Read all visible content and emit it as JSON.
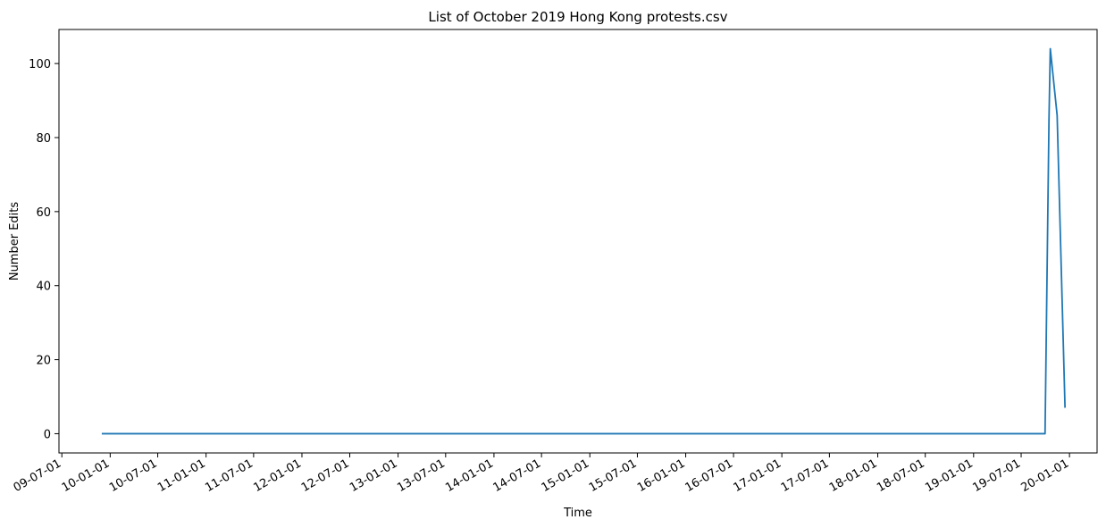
{
  "chart_data": {
    "type": "line",
    "title": "List of October 2019 Hong Kong protests.csv",
    "xlabel": "Time",
    "ylabel": "Number Edits",
    "xlim": [
      "2009-06-20",
      "2020-04-15"
    ],
    "ylim": [
      -5.2,
      109.2
    ],
    "grid": false,
    "line_color": "#1f77b4",
    "x_ticks": [
      {
        "date": "2009-07-01",
        "label": "09-07-01"
      },
      {
        "date": "2010-01-01",
        "label": "10-01-01"
      },
      {
        "date": "2010-07-01",
        "label": "10-07-01"
      },
      {
        "date": "2011-01-01",
        "label": "11-01-01"
      },
      {
        "date": "2011-07-01",
        "label": "11-07-01"
      },
      {
        "date": "2012-01-01",
        "label": "12-01-01"
      },
      {
        "date": "2012-07-01",
        "label": "12-07-01"
      },
      {
        "date": "2013-01-01",
        "label": "13-01-01"
      },
      {
        "date": "2013-07-01",
        "label": "13-07-01"
      },
      {
        "date": "2014-01-01",
        "label": "14-01-01"
      },
      {
        "date": "2014-07-01",
        "label": "14-07-01"
      },
      {
        "date": "2015-01-01",
        "label": "15-01-01"
      },
      {
        "date": "2015-07-01",
        "label": "15-07-01"
      },
      {
        "date": "2016-01-01",
        "label": "16-01-01"
      },
      {
        "date": "2016-07-01",
        "label": "16-07-01"
      },
      {
        "date": "2017-01-01",
        "label": "17-01-01"
      },
      {
        "date": "2017-07-01",
        "label": "17-07-01"
      },
      {
        "date": "2018-01-01",
        "label": "18-01-01"
      },
      {
        "date": "2018-07-01",
        "label": "18-07-01"
      },
      {
        "date": "2019-01-01",
        "label": "19-01-01"
      },
      {
        "date": "2019-07-01",
        "label": "19-07-01"
      },
      {
        "date": "2020-01-01",
        "label": "20-01-01"
      }
    ],
    "y_ticks": [
      0,
      20,
      40,
      60,
      80,
      100
    ],
    "series": [
      {
        "x": [
          "2009-11-30",
          "2019-09-30",
          "2019-10-15",
          "2019-10-20",
          "2019-11-15",
          "2019-12-15"
        ],
        "values": [
          0,
          0,
          85,
          104,
          86,
          7
        ]
      }
    ]
  }
}
